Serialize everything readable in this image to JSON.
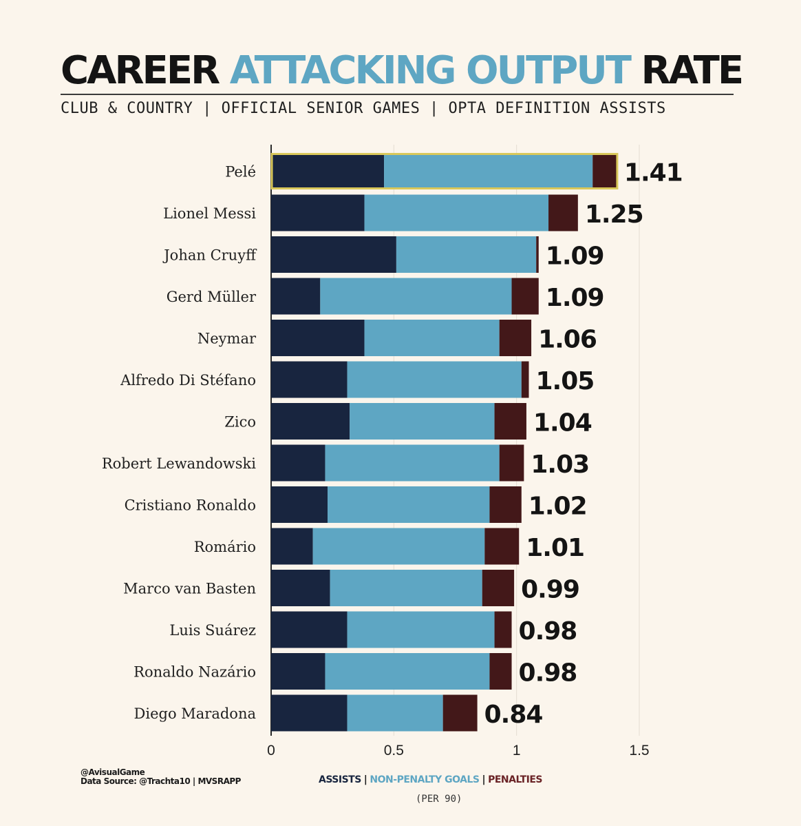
{
  "header": {
    "title_part1": "CAREER",
    "title_part2": "ATTACKING OUTPUT",
    "title_part3": "RATE",
    "subtitle": "CLUB & COUNTRY | OFFICIAL SENIOR GAMES | OPTA DEFINITION ASSISTS"
  },
  "footer": {
    "handle": "@AvisualGame",
    "source": "Data Source: @Trachta10 | MVSRAPP"
  },
  "legend": {
    "assists": "ASSISTS",
    "npg": "NON-PENALTY GOALS",
    "penalties": "PENALTIES",
    "separator": "|",
    "per90": "(PER 90)"
  },
  "colors": {
    "assists": "#18253f",
    "npg": "#5ea6c3",
    "penalties": "#431819",
    "highlight": "#d9c85a"
  },
  "chart_data": {
    "type": "bar",
    "orientation": "horizontal",
    "stacked": true,
    "categories": [
      "Pelé",
      "Lionel Messi",
      "Johan Cruyff",
      "Gerd Müller",
      "Neymar",
      "Alfredo Di Stéfano",
      "Zico",
      "Robert Lewandowski",
      "Cristiano Ronaldo",
      "Romário",
      "Marco van Basten",
      "Luis Suárez",
      "Ronaldo Nazário",
      "Diego Maradona"
    ],
    "series": [
      {
        "name": "ASSISTS",
        "values": [
          0.46,
          0.38,
          0.51,
          0.2,
          0.38,
          0.31,
          0.32,
          0.22,
          0.23,
          0.17,
          0.24,
          0.31,
          0.22,
          0.31
        ]
      },
      {
        "name": "NON-PENALTY GOALS",
        "values": [
          0.85,
          0.75,
          0.57,
          0.78,
          0.55,
          0.71,
          0.59,
          0.71,
          0.66,
          0.7,
          0.62,
          0.6,
          0.67,
          0.39
        ]
      },
      {
        "name": "PENALTIES",
        "values": [
          0.1,
          0.12,
          0.01,
          0.11,
          0.13,
          0.03,
          0.13,
          0.1,
          0.13,
          0.14,
          0.13,
          0.07,
          0.09,
          0.14
        ]
      }
    ],
    "totals": [
      "1.41",
      "1.25",
      "1.09",
      "1.09",
      "1.06",
      "1.05",
      "1.04",
      "1.03",
      "1.02",
      "1.01",
      "0.99",
      "0.98",
      "0.98",
      "0.84"
    ],
    "highlighted": "Pelé",
    "xlim": [
      0,
      1.5
    ],
    "xticks": [
      "0",
      "0.5",
      "1",
      "1.5"
    ],
    "xtick_values": [
      0,
      0.5,
      1,
      1.5
    ],
    "grid": true
  }
}
